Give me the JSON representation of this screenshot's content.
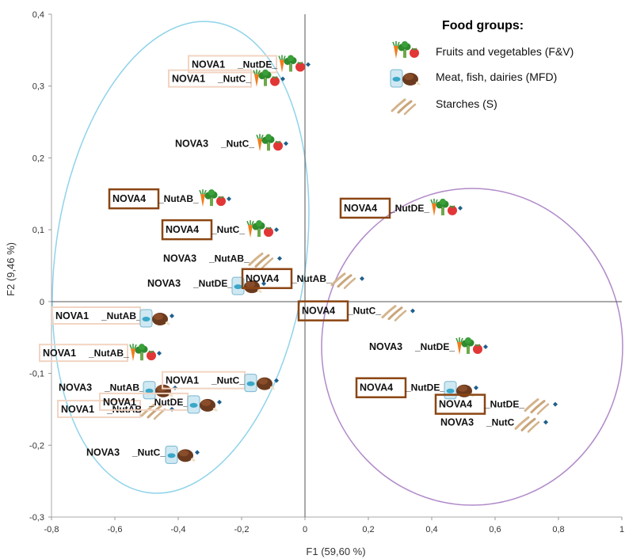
{
  "chart_data": {
    "type": "scatter",
    "title": "",
    "xlabel": "F1 (59,60 %)",
    "ylabel": "F2 (9,46 %)",
    "xlim": [
      -0.8,
      1.0
    ],
    "ylim": [
      -0.3,
      0.4
    ],
    "xticks": [
      "-0,8",
      "-0,6",
      "-0,4",
      "-0,2",
      "0",
      "0,2",
      "0,4",
      "0,6",
      "0,8",
      "1"
    ],
    "yticks": [
      "-0,3",
      "-0,2",
      "-0,1",
      "0",
      "0,1",
      "0,2",
      "0,3",
      "0,4"
    ],
    "grid": false,
    "marker_color": "#1f5f8b",
    "legend": {
      "title": "Food groups:",
      "position": "top-right",
      "entries": [
        {
          "label": "Fruits and vegetables (F&V)",
          "icon": "fruit-vegetable-icon"
        },
        {
          "label": "Meat, fish, dairies (MFD)",
          "icon": "meat-fish-dairy-icon"
        },
        {
          "label": "Starches (S)",
          "icon": "starch-icon"
        }
      ]
    },
    "groups": [
      {
        "name": "cluster-left",
        "color": "#8fd3ea"
      },
      {
        "name": "cluster-right",
        "color": "#b18ac9"
      }
    ],
    "points": [
      {
        "nova": "NOVA1",
        "suffix": "_NutDE_",
        "group": "F&V",
        "x": 0.01,
        "y": 0.33,
        "box": "light"
      },
      {
        "nova": "NOVA1",
        "suffix": "_NutC_",
        "group": "F&V",
        "x": -0.07,
        "y": 0.31,
        "box": "light"
      },
      {
        "nova": "NOVA3",
        "suffix": "_NutC_",
        "group": "F&V",
        "x": -0.06,
        "y": 0.22,
        "box": "none"
      },
      {
        "nova": "NOVA4",
        "suffix": "_NutAB_",
        "group": "F&V",
        "x": -0.24,
        "y": 0.143,
        "box": "dark"
      },
      {
        "nova": "NOVA4",
        "suffix": "_NutC_",
        "group": "F&V",
        "x": -0.09,
        "y": 0.1,
        "box": "dark"
      },
      {
        "nova": "NOVA3",
        "suffix": "_NutAB_",
        "group": "S",
        "x": -0.08,
        "y": 0.06,
        "box": "none"
      },
      {
        "nova": "NOVA3",
        "suffix": "_NutDE_",
        "group": "MFD",
        "x": -0.13,
        "y": 0.025,
        "box": "none"
      },
      {
        "nova": "NOVA1",
        "suffix": "_NutAB_",
        "group": "MFD",
        "x": -0.42,
        "y": -0.02,
        "box": "light"
      },
      {
        "nova": "NOVA1",
        "suffix": "_NutAB_",
        "group": "F&V",
        "x": -0.46,
        "y": -0.072,
        "box": "light"
      },
      {
        "nova": "NOVA3",
        "suffix": "_NutAB_",
        "group": "MFD",
        "x": -0.41,
        "y": -0.12,
        "box": "none"
      },
      {
        "nova": "NOVA1",
        "suffix": "_NutC_",
        "group": "MFD",
        "x": -0.09,
        "y": -0.11,
        "box": "light"
      },
      {
        "nova": "NOVA1",
        "suffix": "_NutAB",
        "group": "S",
        "x": -0.42,
        "y": -0.15,
        "box": "light"
      },
      {
        "nova": "NOVA1",
        "suffix": "_NutDE_",
        "group": "MFD",
        "x": -0.27,
        "y": -0.14,
        "box": "light"
      },
      {
        "nova": "NOVA3",
        "suffix": "_NutC_",
        "group": "MFD",
        "x": -0.34,
        "y": -0.21,
        "box": "none"
      },
      {
        "nova": "NOVA4",
        "suffix": "_NutDE_",
        "group": "F&V",
        "x": 0.49,
        "y": 0.13,
        "box": "dark"
      },
      {
        "nova": "NOVA4",
        "suffix": "_NutAB_",
        "group": "S",
        "x": 0.18,
        "y": 0.032,
        "box": "dark"
      },
      {
        "nova": "NOVA4",
        "suffix": "_NutC_",
        "group": "S",
        "x": 0.34,
        "y": -0.013,
        "box": "dark"
      },
      {
        "nova": "NOVA3",
        "suffix": "_NutDE_",
        "group": "F&V",
        "x": 0.57,
        "y": -0.063,
        "box": "none"
      },
      {
        "nova": "NOVA4",
        "suffix": "_NutDE_",
        "group": "MFD",
        "x": 0.54,
        "y": -0.12,
        "box": "dark"
      },
      {
        "nova": "NOVA4",
        "suffix": "_NutDE_",
        "group": "S",
        "x": 0.79,
        "y": -0.143,
        "box": "dark"
      },
      {
        "nova": "NOVA3",
        "suffix": "_NutC",
        "group": "S",
        "x": 0.76,
        "y": -0.168,
        "box": "none"
      }
    ]
  }
}
